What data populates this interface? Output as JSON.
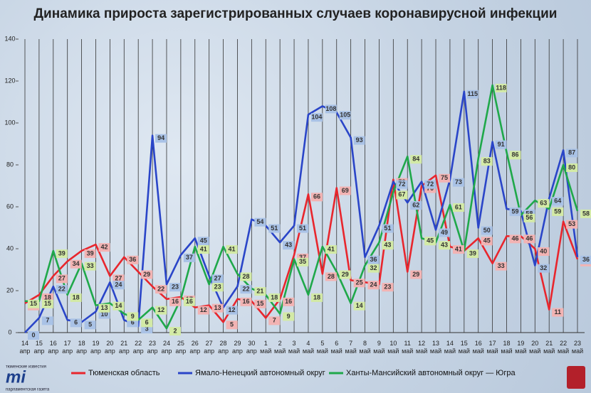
{
  "chart_data": {
    "type": "line",
    "title": "Динамика прироста зарегистрированных случаев коронавирусной инфекции",
    "categories": [
      "14 апр",
      "15 апр",
      "16 апр",
      "17 апр",
      "18 апр",
      "19 апр",
      "20 апр",
      "21 апр",
      "22 апр",
      "23 апр",
      "24 апр",
      "25 апр",
      "26 апр",
      "27 апр",
      "28 апр",
      "29 апр",
      "30 апр",
      "1 май",
      "2 май",
      "3 май",
      "4 май",
      "5 май",
      "6 май",
      "7 май",
      "8 май",
      "9 май",
      "10 май",
      "11 май",
      "12 май",
      "13 май",
      "14 май",
      "15 май",
      "16 май",
      "17 май",
      "18 май",
      "19 май",
      "20 май",
      "21 май",
      "22 май",
      "23 май"
    ],
    "series": [
      {
        "name": "Тюменская область",
        "color": "#e8262d",
        "label_color": "#f2b3b3",
        "values": [
          14,
          18,
          27,
          34,
          39,
          42,
          27,
          36,
          29,
          22,
          16,
          17,
          12,
          13,
          5,
          16,
          15,
          7,
          16,
          37,
          66,
          28,
          69,
          25,
          24,
          23,
          73,
          29,
          70,
          75,
          41,
          39,
          45,
          33,
          46,
          46,
          40,
          11,
          53,
          35
        ]
      },
      {
        "name": "Ямало-Ненецкий автономный округ",
        "color": "#2a45c8",
        "label_color": "#a9c2e6",
        "values": [
          0,
          7,
          22,
          6,
          5,
          10,
          24,
          6,
          3,
          94,
          23,
          37,
          45,
          27,
          12,
          22,
          54,
          51,
          43,
          51,
          104,
          108,
          105,
          93,
          36,
          51,
          72,
          62,
          72,
          49,
          73,
          115,
          50,
          91,
          59,
          58,
          32,
          64,
          87,
          36
        ]
      },
      {
        "name": "Ханты-Мансийский автономный округ — Югра",
        "color": "#1fa84a",
        "label_color": "#d3eaa6",
        "values": [
          15,
          15,
          39,
          18,
          33,
          13,
          14,
          9,
          6,
          12,
          2,
          16,
          41,
          23,
          41,
          28,
          21,
          18,
          9,
          35,
          18,
          41,
          29,
          14,
          32,
          43,
          67,
          84,
          45,
          43,
          61,
          39,
          83,
          118,
          86,
          56,
          63,
          59,
          80,
          58
        ]
      }
    ],
    "ylim": [
      0,
      140
    ],
    "yticks": [
      0,
      20,
      40,
      60,
      80,
      100,
      120,
      140
    ],
    "grid": true,
    "logo": {
      "top": "тюменские известия",
      "mark": "mi",
      "bottom": "парламентская газета"
    }
  }
}
